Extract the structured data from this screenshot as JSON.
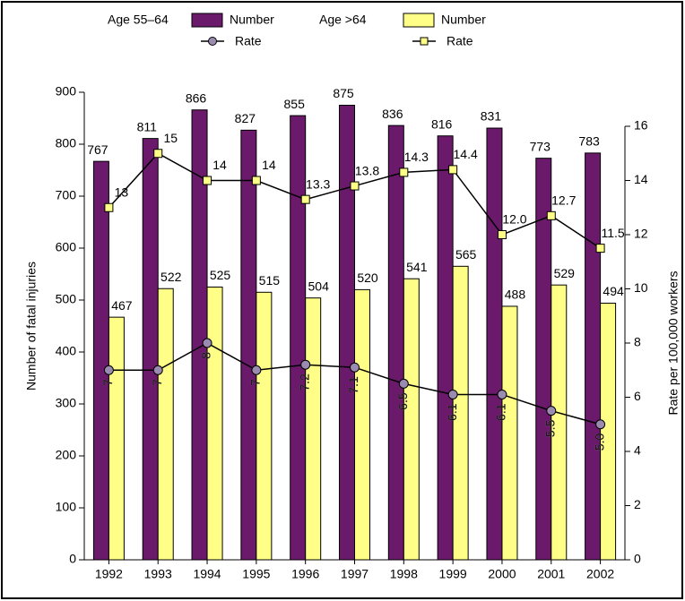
{
  "chart_data": {
    "type": "bar-line",
    "categories": [
      "1992",
      "1993",
      "1994",
      "1995",
      "1996",
      "1997",
      "1998",
      "1999",
      "2000",
      "2001",
      "2002"
    ],
    "series": [
      {
        "group": "Age 55–64",
        "name": "Number",
        "type": "bar",
        "color": "#6b1a6b",
        "values": [
          767,
          811,
          866,
          827,
          855,
          875,
          836,
          816,
          831,
          773,
          783
        ]
      },
      {
        "group": "Age >64",
        "name": "Number",
        "type": "bar",
        "color": "#ffff88",
        "values": [
          467,
          522,
          525,
          515,
          504,
          520,
          541,
          565,
          488,
          529,
          494
        ]
      },
      {
        "group": "Age 55–64",
        "name": "Rate",
        "type": "line",
        "marker": "circle",
        "color": "#9b8bb0",
        "axis": "y2",
        "values": [
          7,
          7,
          8,
          7,
          7.2,
          7.1,
          6.5,
          6.1,
          6.1,
          5.5,
          5.0
        ],
        "value_labels": [
          "7",
          "7",
          "8",
          "7",
          "7.2",
          "7.1",
          "6.5",
          "6.1",
          "6.1",
          "5.5",
          "5.0"
        ]
      },
      {
        "group": "Age >64",
        "name": "Rate",
        "type": "line",
        "marker": "square",
        "color": "#ffff88",
        "axis": "y2",
        "values": [
          13,
          15,
          14,
          14,
          13.3,
          13.8,
          14.3,
          14.4,
          12.0,
          12.7,
          11.5
        ],
        "value_labels": [
          "13",
          "15",
          "14",
          "14",
          "13.3",
          "13.8",
          "14.3",
          "14.4",
          "12.0",
          "12.7",
          "11.5"
        ]
      }
    ],
    "ylabel": "Number of fatal injuries",
    "y2label": "Rate per 100,000 workers",
    "ylim": [
      0,
      900
    ],
    "yticks": [
      0,
      100,
      200,
      300,
      400,
      500,
      600,
      700,
      800,
      900
    ],
    "y2lim": [
      0,
      16
    ],
    "y2ticks": [
      0,
      2,
      4,
      6,
      8,
      10,
      12,
      14,
      16
    ]
  }
}
